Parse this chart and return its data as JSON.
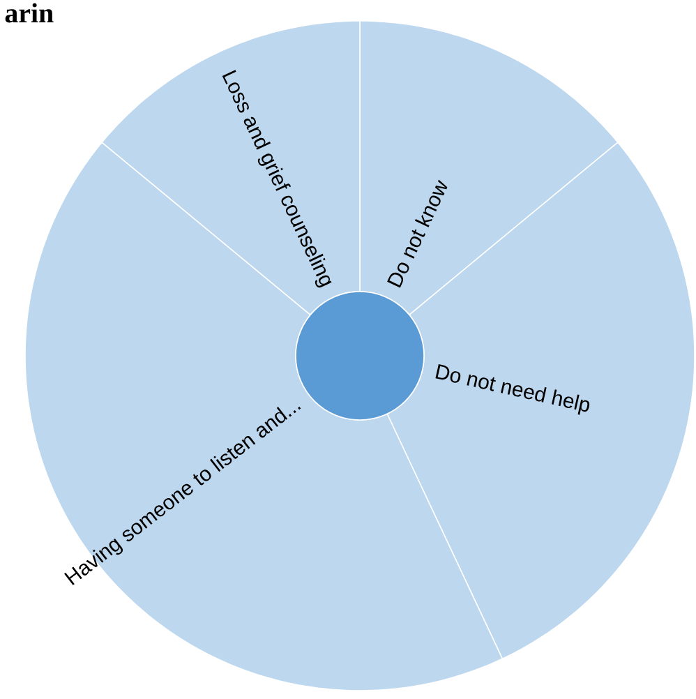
{
  "chart_data": {
    "type": "donut",
    "title": "arin",
    "categories": [
      "Do not know",
      "Do not need help",
      "Having someone to listen and...",
      "Loss and grief counseling"
    ],
    "values": [
      14,
      29,
      43,
      14
    ],
    "colors": [
      "#bdd7ee",
      "#bdd7ee",
      "#bdd7ee",
      "#bdd7ee"
    ]
  }
}
